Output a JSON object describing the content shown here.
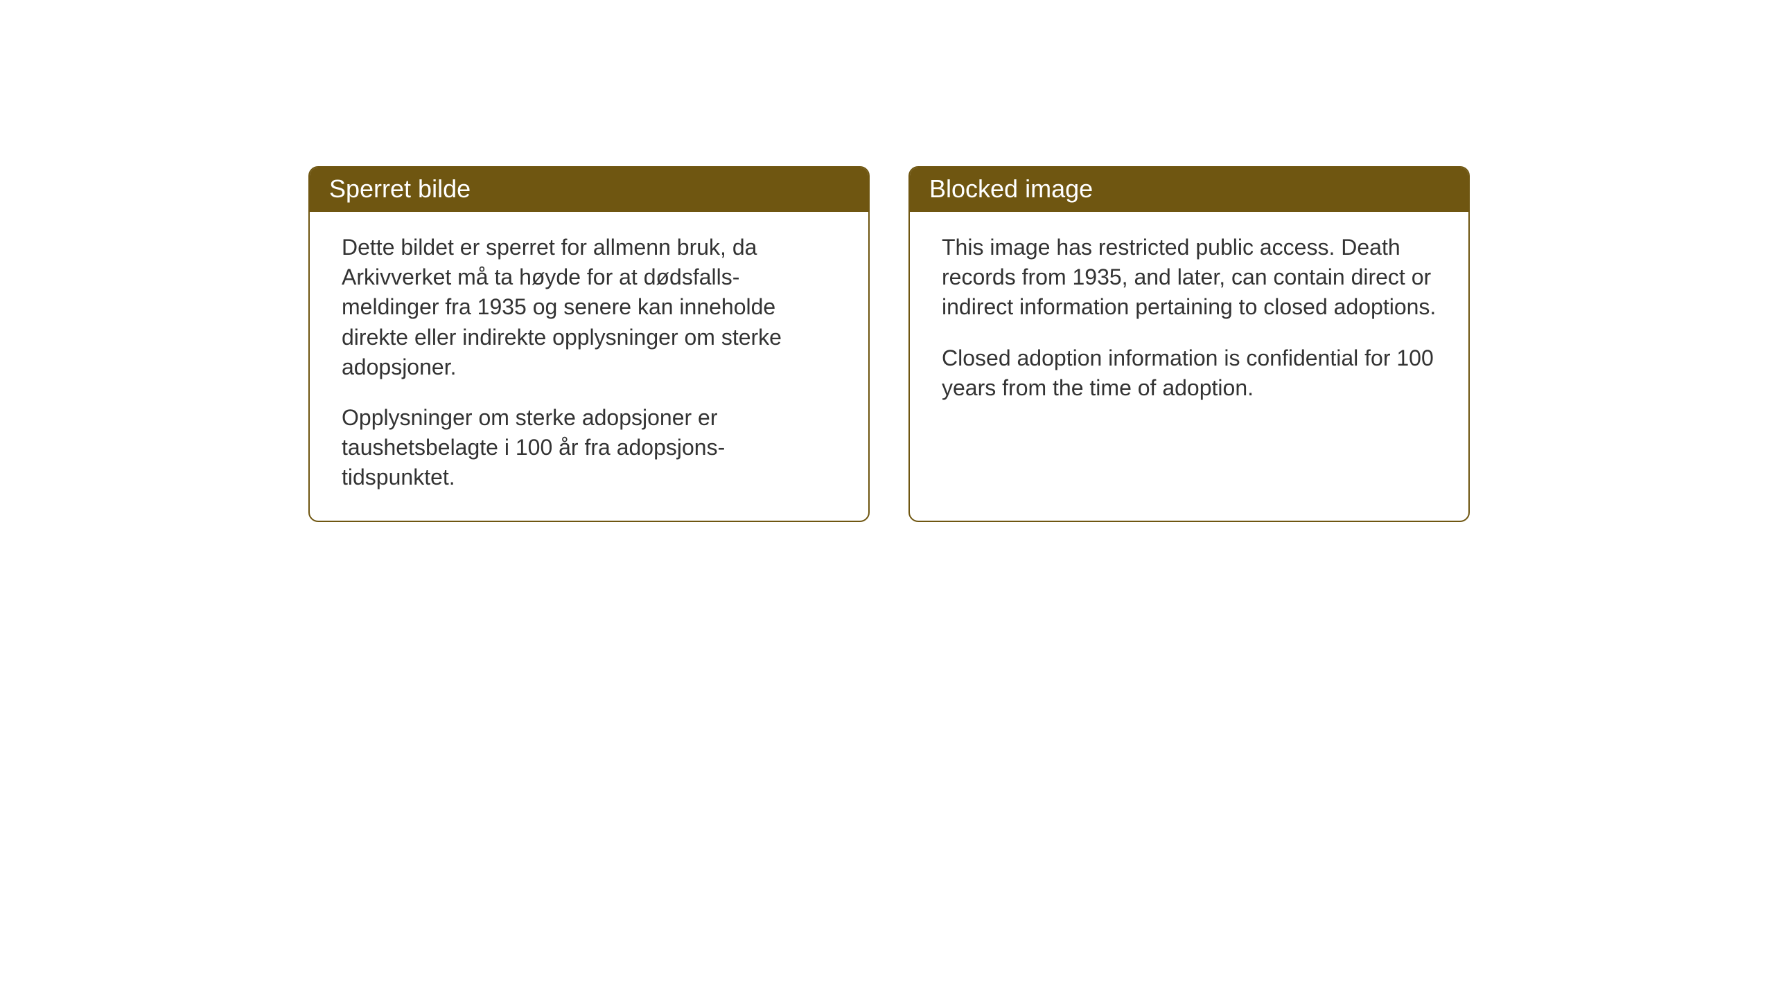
{
  "page": {
    "background_color": "#ffffff"
  },
  "cards": {
    "header_background_color": "#6f5611",
    "header_text_color": "#ffffff",
    "border_color": "#6f5611",
    "body_text_color": "#333333",
    "body_background_color": "#ffffff",
    "header_fontsize": 36,
    "body_fontsize": 32,
    "border_radius": 14,
    "border_width": 2
  },
  "card_norwegian": {
    "title": "Sperret bilde",
    "paragraph1": "Dette bildet er sperret for allmenn bruk, da Arkivverket må ta høyde for at dødsfalls-meldinger fra 1935 og senere kan inneholde direkte eller indirekte opplysninger om sterke adopsjoner.",
    "paragraph2": "Opplysninger om sterke adopsjoner er taushetsbelagte i 100 år fra adopsjons-tidspunktet."
  },
  "card_english": {
    "title": "Blocked image",
    "paragraph1": "This image has restricted public access. Death records from 1935, and later, can contain direct or indirect information pertaining to closed adoptions.",
    "paragraph2": "Closed adoption information is confidential for 100 years from the time of adoption."
  }
}
